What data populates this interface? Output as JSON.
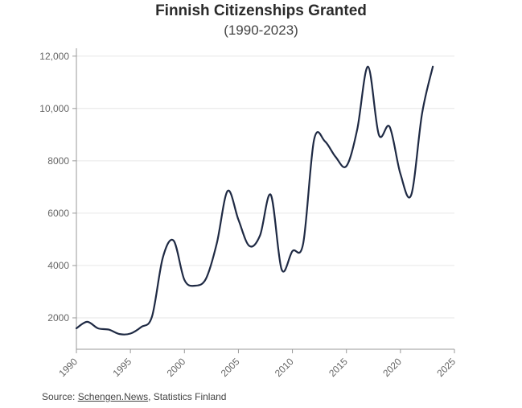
{
  "chart_data": {
    "type": "line",
    "title": "Finnish Citizenships Granted",
    "subtitle": "(1990-2023)",
    "xlabel": "",
    "ylabel": "",
    "xlim": [
      1990,
      2025
    ],
    "ylim": [
      800,
      12300
    ],
    "x_ticks": [
      1990,
      1995,
      2000,
      2005,
      2010,
      2015,
      2020,
      2025
    ],
    "y_ticks": [
      2000,
      4000,
      6000,
      8000,
      10000,
      12000
    ],
    "y_tick_labels": [
      "2000",
      "4000",
      "6000",
      "8000",
      "10,000",
      "12,000"
    ],
    "grid": true,
    "line_color": "#1f2a44",
    "series": [
      {
        "name": "Citizenships granted",
        "x": [
          1990,
          1991,
          1992,
          1993,
          1994,
          1995,
          1996,
          1997,
          1998,
          1999,
          2000,
          2001,
          2002,
          2003,
          2004,
          2005,
          2006,
          2007,
          2008,
          2009,
          2010,
          2011,
          2012,
          2013,
          2014,
          2015,
          2016,
          2017,
          2018,
          2019,
          2020,
          2021,
          2022,
          2023
        ],
        "values": [
          1600,
          1850,
          1600,
          1550,
          1380,
          1400,
          1650,
          2050,
          4300,
          4950,
          3450,
          3230,
          3500,
          4850,
          6850,
          5750,
          4750,
          5150,
          6700,
          3850,
          4550,
          4850,
          8800,
          8750,
          8150,
          7800,
          9200,
          11600,
          9000,
          9300,
          7500,
          6700,
          9800,
          11600
        ]
      }
    ]
  },
  "footer": {
    "source_prefix": "Source: ",
    "source_link": "Schengen.News",
    "source_suffix": ", Statistics Finland"
  }
}
